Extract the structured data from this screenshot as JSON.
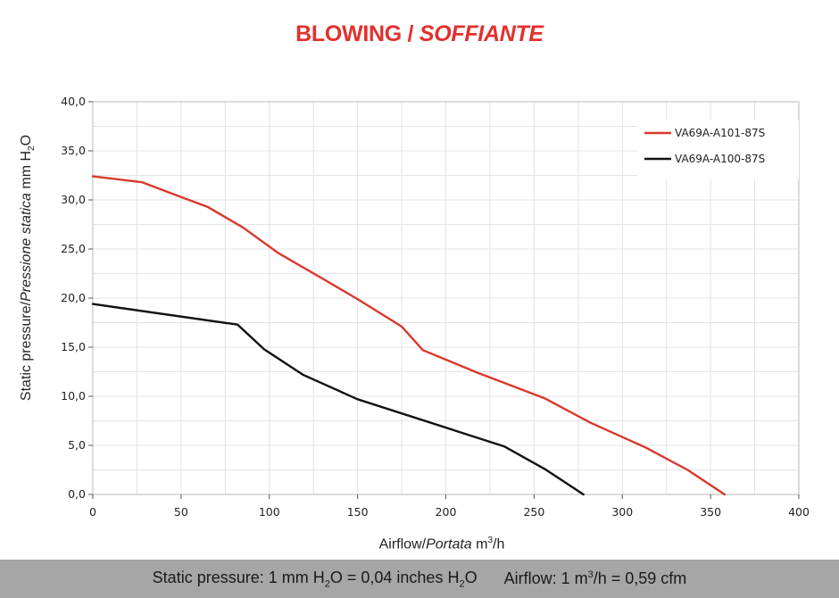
{
  "chart_data": {
    "type": "line",
    "title": "BLOWING / SOFFIANTE",
    "title_main": "BLOWING /",
    "title_italic": "SOFFIANTE",
    "xlabel": "Airflow / Portata m³/h",
    "ylabel": "Static pressure / Pressione statica mm H₂O",
    "xlim": [
      0,
      400
    ],
    "ylim": [
      0,
      40
    ],
    "x_ticks": [
      0,
      50,
      100,
      150,
      200,
      250,
      300,
      350,
      400
    ],
    "y_ticks": [
      0,
      5,
      10,
      15,
      20,
      25,
      30,
      35,
      40
    ],
    "x_tick_labels": [
      "0",
      "50",
      "100",
      "150",
      "200",
      "250",
      "300",
      "350",
      "400"
    ],
    "y_tick_labels": [
      "0,0",
      "5,0",
      "10,0",
      "15,0",
      "20,0",
      "25,0",
      "30,0",
      "35,0",
      "40,0"
    ],
    "grid": true,
    "legend_position": "top-right",
    "series": [
      {
        "name": "VA69A-A101-87S",
        "color": "#d9382b",
        "x": [
          0,
          28,
          50,
          65,
          85,
          105,
          130,
          150,
          175,
          187,
          218,
          256,
          282,
          313,
          337,
          358
        ],
        "y": [
          32.4,
          31.8,
          30.3,
          29.3,
          27.2,
          24.6,
          22.0,
          19.9,
          17.1,
          14.7,
          12.4,
          9.8,
          7.3,
          4.8,
          2.5,
          0.0
        ]
      },
      {
        "name": "VA69A-A100-87S",
        "color": "#111111",
        "x": [
          0,
          82,
          97,
          119,
          150,
          233,
          256,
          278
        ],
        "y": [
          19.4,
          17.3,
          14.8,
          12.2,
          9.7,
          4.9,
          2.6,
          0.0
        ]
      }
    ]
  },
  "axis_labels": {
    "x_main": "Airflow",
    "x_sep": "/",
    "x_italic": "Portata",
    "x_unit": "m",
    "x_unit_sup": "3",
    "x_unit_tail": "/h",
    "y_main": "Static pressure",
    "y_sep": "/",
    "y_italic": "Pressione statica",
    "y_unit": "mm H",
    "y_unit_sub": "2",
    "y_unit_tail": "O"
  },
  "footer": {
    "pressure_a": "Static pressure: 1 mm H",
    "pressure_sub": "2",
    "pressure_b": "O = 0,04 inches H",
    "pressure_sub2": "2",
    "pressure_c": "O",
    "airflow_a": "Airflow: 1 m",
    "airflow_sup": "3",
    "airflow_b": "/h = 0,59 cfm"
  }
}
